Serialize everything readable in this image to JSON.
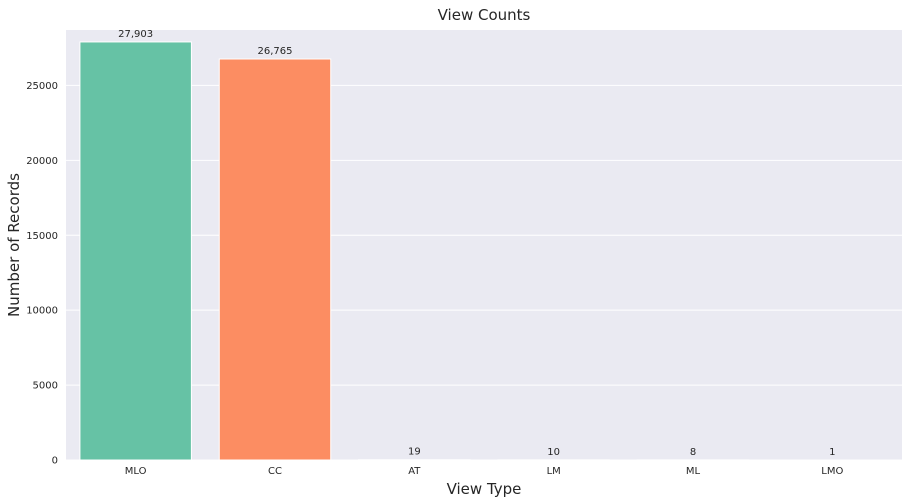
{
  "chart_data": {
    "type": "bar",
    "title": "View Counts",
    "xlabel": "View Type",
    "ylabel": "Number of Records",
    "categories": [
      "MLO",
      "CC",
      "AT",
      "LM",
      "ML",
      "LMO"
    ],
    "values": [
      27903,
      26765,
      19,
      10,
      8,
      1
    ],
    "value_labels": [
      "27,903",
      "26,765",
      "19",
      "10",
      "8",
      "1"
    ],
    "ylim": [
      0,
      28700
    ],
    "yticks": [
      0,
      5000,
      10000,
      15000,
      20000,
      25000
    ],
    "ytick_labels": [
      "0",
      "5000",
      "10000",
      "15000",
      "20000",
      "25000"
    ],
    "grid": true,
    "colors": [
      "#66c2a5",
      "#fc8d62",
      "#8da0cb",
      "#e78ac3",
      "#a6d854",
      "#ffd92f"
    ],
    "background": "#eaeaf2",
    "grid_color": "#ffffff"
  }
}
